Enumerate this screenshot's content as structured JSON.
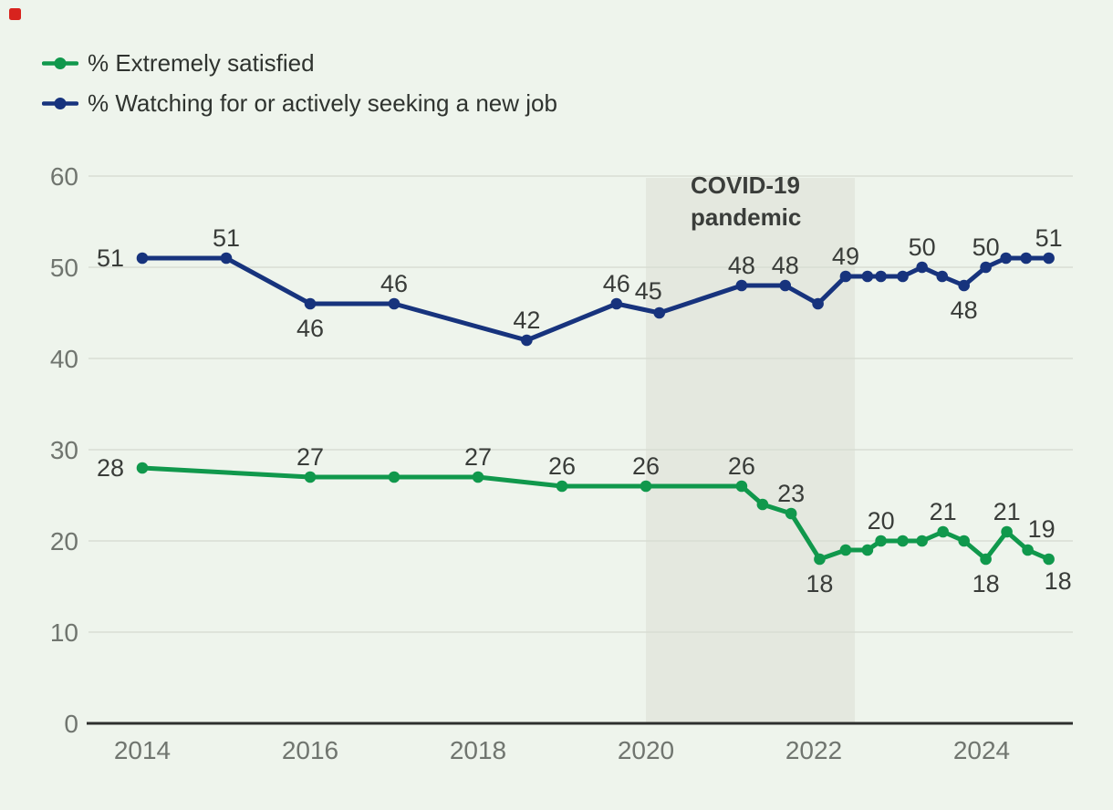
{
  "page": {
    "background_color": "#eef4ec",
    "indicator_color": "#d8231e"
  },
  "legend": {
    "items": [
      {
        "label": "% Extremely satisfied",
        "color": "#10984c"
      },
      {
        "label": "% Watching for or actively seeking a new job",
        "color": "#17337d"
      }
    ]
  },
  "colors": {
    "green_series": "#10984c",
    "navy_series": "#17337d",
    "gridline": "#d8ddd4",
    "axis_line": "#2e2f2e",
    "tick_label": "#70756f",
    "data_label": "#393c39",
    "covid_band": "#e4e8df",
    "covid_text": "#3a3d3a"
  },
  "chart_data": {
    "type": "line",
    "title": "",
    "xlabel": "",
    "ylabel": "",
    "xlim": [
      2013.3,
      2025.1
    ],
    "ylim": [
      0,
      60
    ],
    "x_ticks": [
      "2014",
      "2016",
      "2018",
      "2020",
      "2022",
      "2024"
    ],
    "x_tick_values": [
      2014,
      2016,
      2018,
      2020,
      2022,
      2024
    ],
    "y_ticks": [
      "0",
      "10",
      "20",
      "30",
      "40",
      "50",
      "60"
    ],
    "y_tick_values": [
      0,
      10,
      20,
      30,
      40,
      50,
      60
    ],
    "grid": true,
    "legend_position": "top-left",
    "annotation": {
      "label_lines": [
        "COVID-19",
        "pandemic"
      ],
      "x_start": 2020.0,
      "x_end": 2022.49
    },
    "series": [
      {
        "name": "% Extremely satisfied",
        "color": "#10984c",
        "points": [
          {
            "x": 2014.0,
            "y": 28,
            "label": "28",
            "label_pos": "left"
          },
          {
            "x": 2016.0,
            "y": 27,
            "label": "27",
            "label_pos": "above"
          },
          {
            "x": 2017.0,
            "y": 27,
            "label": null
          },
          {
            "x": 2018.0,
            "y": 27,
            "label": "27",
            "label_pos": "above"
          },
          {
            "x": 2019.0,
            "y": 26,
            "label": "26",
            "label_pos": "above"
          },
          {
            "x": 2020.0,
            "y": 26,
            "label": "26",
            "label_pos": "above"
          },
          {
            "x": 2021.14,
            "y": 26,
            "label": "26",
            "label_pos": "above"
          },
          {
            "x": 2021.39,
            "y": 24,
            "label": null
          },
          {
            "x": 2021.73,
            "y": 23,
            "label": "23",
            "label_pos": "above"
          },
          {
            "x": 2022.07,
            "y": 18,
            "label": "18",
            "label_pos": "below"
          },
          {
            "x": 2022.38,
            "y": 19,
            "label": null
          },
          {
            "x": 2022.64,
            "y": 19,
            "label": null
          },
          {
            "x": 2022.8,
            "y": 20,
            "label": "20",
            "label_pos": "above"
          },
          {
            "x": 2023.06,
            "y": 20,
            "label": null
          },
          {
            "x": 2023.29,
            "y": 20,
            "label": null
          },
          {
            "x": 2023.54,
            "y": 21,
            "label": "21",
            "label_pos": "above"
          },
          {
            "x": 2023.79,
            "y": 20,
            "label": null
          },
          {
            "x": 2024.05,
            "y": 18,
            "label": "18",
            "label_pos": "below"
          },
          {
            "x": 2024.3,
            "y": 21,
            "label": "21",
            "label_pos": "above"
          },
          {
            "x": 2024.55,
            "y": 19,
            "label": "19",
            "label_pos": "above-right"
          },
          {
            "x": 2024.8,
            "y": 18,
            "label": "18",
            "label_pos": "below-right"
          }
        ]
      },
      {
        "name": "% Watching for or actively seeking a new job",
        "color": "#17337d",
        "points": [
          {
            "x": 2014.0,
            "y": 51,
            "label": "51",
            "label_pos": "left"
          },
          {
            "x": 2015.0,
            "y": 51,
            "label": "51",
            "label_pos": "above"
          },
          {
            "x": 2016.0,
            "y": 46,
            "label": "46",
            "label_pos": "below"
          },
          {
            "x": 2017.0,
            "y": 46,
            "label": "46",
            "label_pos": "above"
          },
          {
            "x": 2018.58,
            "y": 42,
            "label": "42",
            "label_pos": "above"
          },
          {
            "x": 2019.65,
            "y": 46,
            "label": "46",
            "label_pos": "above"
          },
          {
            "x": 2020.16,
            "y": 45,
            "label": "45",
            "label_pos": "above-left"
          },
          {
            "x": 2021.14,
            "y": 48,
            "label": "48",
            "label_pos": "above"
          },
          {
            "x": 2021.66,
            "y": 48,
            "label": "48",
            "label_pos": "above"
          },
          {
            "x": 2022.05,
            "y": 46,
            "label": null
          },
          {
            "x": 2022.38,
            "y": 49,
            "label": "49",
            "label_pos": "above"
          },
          {
            "x": 2022.64,
            "y": 49,
            "label": null
          },
          {
            "x": 2022.8,
            "y": 49,
            "label": null
          },
          {
            "x": 2023.06,
            "y": 49,
            "label": null
          },
          {
            "x": 2023.29,
            "y": 50,
            "label": "50",
            "label_pos": "above"
          },
          {
            "x": 2023.53,
            "y": 49,
            "label": null
          },
          {
            "x": 2023.79,
            "y": 48,
            "label": "48",
            "label_pos": "below"
          },
          {
            "x": 2024.05,
            "y": 50,
            "label": "50",
            "label_pos": "above"
          },
          {
            "x": 2024.29,
            "y": 51,
            "label": null
          },
          {
            "x": 2024.53,
            "y": 51,
            "label": null
          },
          {
            "x": 2024.8,
            "y": 51,
            "label": "51",
            "label_pos": "above"
          }
        ]
      }
    ]
  }
}
